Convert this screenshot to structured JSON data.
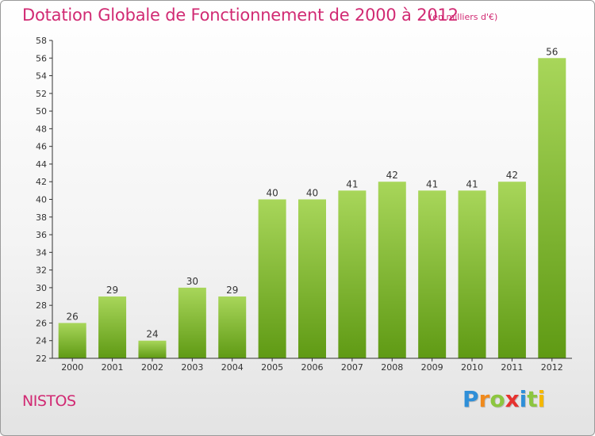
{
  "title": "Dotation Globale de Fonctionnement de 2000 à 2012",
  "unit": "(en milliers d'€)",
  "commune": "NISTOS",
  "logo": {
    "letters": [
      "P",
      "r",
      "o",
      "x",
      "i",
      "t",
      "i"
    ],
    "colors": [
      "#2f8fd8",
      "#f08a1c",
      "#8cc63f",
      "#e6322f",
      "#2f8fd8",
      "#8cc63f",
      "#f5b800"
    ]
  },
  "colors": {
    "title": "#d12a73",
    "bar_top": "#a8d65a",
    "bar_bottom": "#5f9a14",
    "axis": "#333333"
  },
  "chart_data": {
    "type": "bar",
    "title": "Dotation Globale de Fonctionnement de 2000 à 2012",
    "categories": [
      "2000",
      "2001",
      "2002",
      "2003",
      "2004",
      "2005",
      "2006",
      "2007",
      "2008",
      "2009",
      "2010",
      "2011",
      "2012"
    ],
    "values": [
      26,
      29,
      24,
      30,
      29,
      40,
      40,
      41,
      42,
      41,
      41,
      42,
      56
    ],
    "ylim": [
      22,
      58
    ],
    "yticks": [
      22,
      24,
      26,
      28,
      30,
      32,
      34,
      36,
      38,
      40,
      42,
      44,
      46,
      48,
      50,
      52,
      54,
      56,
      58
    ],
    "grid": false,
    "data_labels": true
  }
}
